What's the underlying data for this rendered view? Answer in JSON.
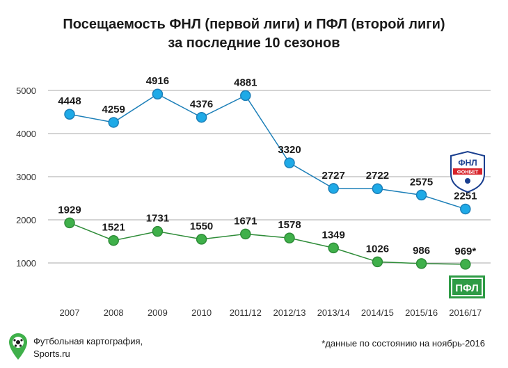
{
  "title_line1": "Посещаемость ФНЛ (первой лиги) и ПФЛ (второй лиги)",
  "title_line2": "за последние 10 сезонов",
  "footer": {
    "source_line1": "Футбольная картография,",
    "source_line2": "Sports.ru",
    "note": "*данные по состоянию на ноябрь-2016"
  },
  "logos": {
    "fnl_text": "ФНЛ",
    "fnl_sponsor": "ФОНБЕТ",
    "pfl_text": "ПФЛ"
  },
  "colors": {
    "fnl": "#1eaae7",
    "pfl": "#3fb04a",
    "fnl_stroke": "#1c7fb8",
    "pfl_stroke": "#2e8c38",
    "grid": "#aaaaaa"
  },
  "chart_data": {
    "type": "line",
    "title": "Посещаемость ФНЛ (первой лиги) и ПФЛ (второй лиги) за последние 10 сезонов",
    "categories": [
      "2007",
      "2008",
      "2009",
      "2010",
      "2011/12",
      "2012/13",
      "2013/14",
      "2014/15",
      "2015/16",
      "2016/17"
    ],
    "yticks": [
      "1000",
      "2000",
      "3000",
      "4000",
      "5000"
    ],
    "ylim": [
      0,
      5500
    ],
    "series": [
      {
        "name": "ФНЛ",
        "values": [
          4448,
          4259,
          4916,
          4376,
          4881,
          3320,
          2727,
          2722,
          2575,
          2251
        ],
        "labels": [
          "4448",
          "4259",
          "4916",
          "4376",
          "4881",
          "3320",
          "2727",
          "2722",
          "2575",
          "2251"
        ]
      },
      {
        "name": "ПФЛ",
        "values": [
          1929,
          1521,
          1731,
          1550,
          1671,
          1578,
          1349,
          1026,
          986,
          969
        ],
        "labels": [
          "1929",
          "1521",
          "1731",
          "1550",
          "1671",
          "1578",
          "1349",
          "1026",
          "986",
          "969*"
        ]
      }
    ],
    "grid": true
  }
}
